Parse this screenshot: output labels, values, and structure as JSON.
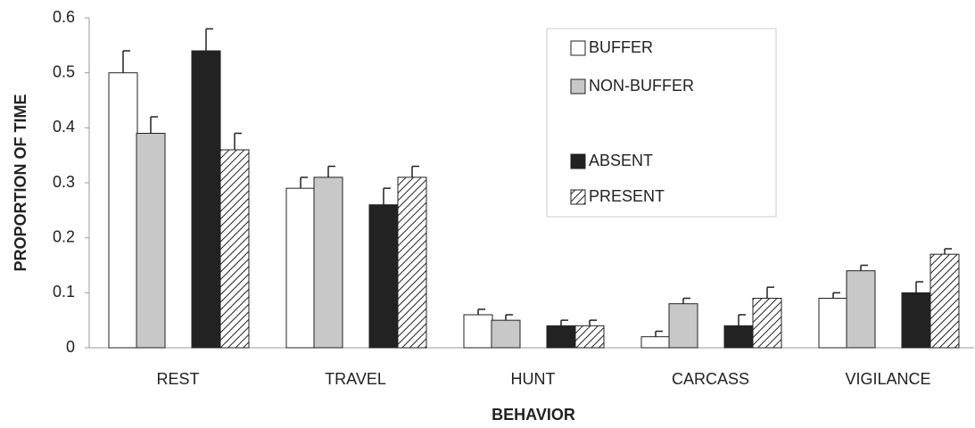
{
  "chart_data": {
    "type": "bar",
    "x_label": "BEHAVIOR",
    "y_label": "PROPORTION OF TIME",
    "categories": [
      "REST",
      "TRAVEL",
      "HUNT",
      "CARCASS",
      "VIGILANCE"
    ],
    "series": [
      {
        "name": "BUFFER",
        "color": "#ffffff",
        "values": [
          0.5,
          0.29,
          0.06,
          0.02,
          0.09
        ],
        "errors": [
          0.04,
          0.02,
          0.01,
          0.01,
          0.01
        ]
      },
      {
        "name": "NON-BUFFER",
        "color": "#c8c8c8",
        "values": [
          0.39,
          0.31,
          0.05,
          0.08,
          0.14
        ],
        "errors": [
          0.03,
          0.02,
          0.01,
          0.01,
          0.01
        ]
      },
      {
        "name": "ABSENT",
        "color": "#222222",
        "values": [
          0.54,
          0.26,
          0.04,
          0.04,
          0.1
        ],
        "errors": [
          0.04,
          0.03,
          0.01,
          0.02,
          0.02
        ]
      },
      {
        "name": "PRESENT",
        "color": "#ffffff",
        "hatch": true,
        "values": [
          0.36,
          0.31,
          0.04,
          0.09,
          0.17
        ],
        "errors": [
          0.03,
          0.02,
          0.01,
          0.02,
          0.01
        ]
      }
    ],
    "ylim": [
      0,
      0.6
    ],
    "yticks": [
      0,
      0.1,
      0.2,
      0.3,
      0.4,
      0.5,
      0.6
    ]
  }
}
